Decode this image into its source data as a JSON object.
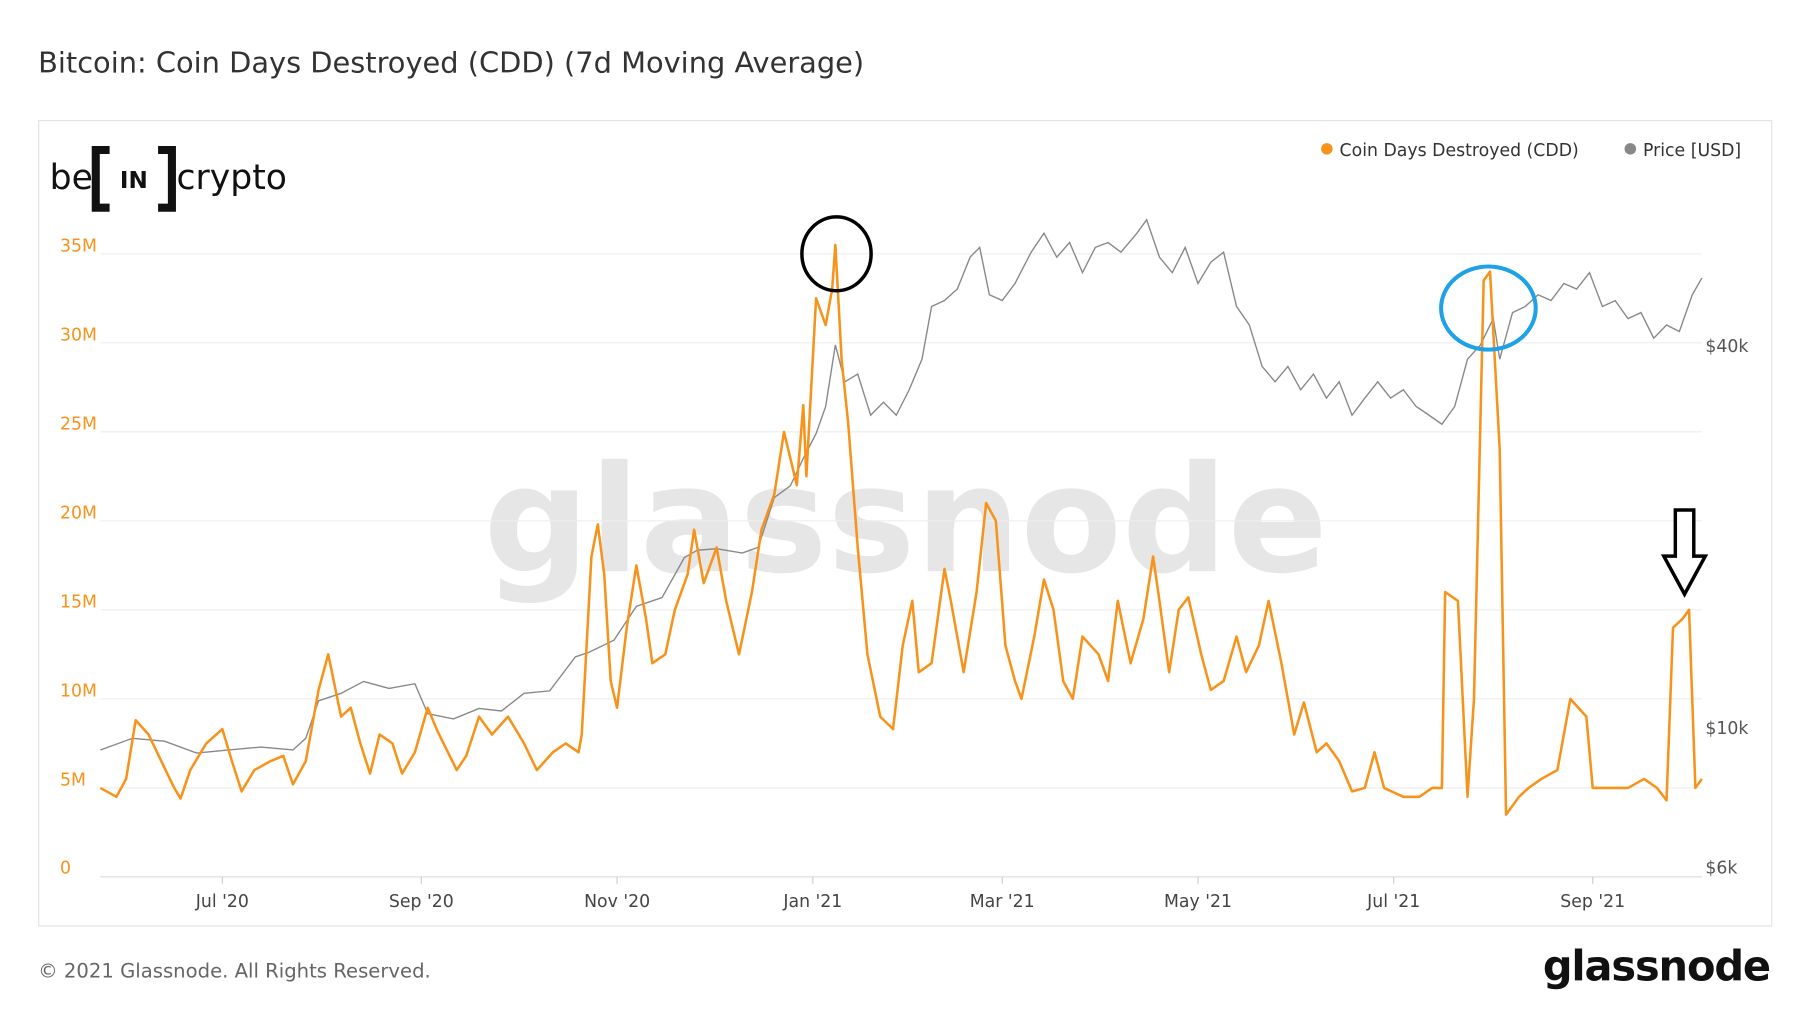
{
  "title": "Bitcoin: Coin Days Destroyed (CDD) (7d Moving Average)",
  "footer": "© 2021 Glassnode. All Rights Reserved.",
  "brand": "glassnode",
  "watermark": "glassnode",
  "logo": {
    "left": "be",
    "mid": "IN",
    "right": "crypto"
  },
  "colors": {
    "cdd": "#f7931a",
    "price": "#888888",
    "circle_black": "#000000",
    "circle_blue": "#1ea1e6"
  },
  "chart_data": {
    "type": "line",
    "title": "Bitcoin: Coin Days Destroyed (CDD) (7d Moving Average)",
    "x_start_date": "2020-05-24",
    "x_unit": "days since x_start_date",
    "x_range": [
      0,
      499
    ],
    "x_ticks": [
      {
        "label": "Jul '20",
        "day": 38
      },
      {
        "label": "Sep '20",
        "day": 100
      },
      {
        "label": "Nov '20",
        "day": 161
      },
      {
        "label": "Jan '21",
        "day": 222
      },
      {
        "label": "Mar '21",
        "day": 281
      },
      {
        "label": "May '21",
        "day": 342
      },
      {
        "label": "Jul '21",
        "day": 403
      },
      {
        "label": "Sep '21",
        "day": 465
      }
    ],
    "y_left": {
      "range": [
        0,
        35000000
      ],
      "ticks": [
        {
          "label": "0",
          "value": 0
        },
        {
          "label": "5M",
          "value": 5
        },
        {
          "label": "10M",
          "value": 10
        },
        {
          "label": "15M",
          "value": 15
        },
        {
          "label": "20M",
          "value": 20
        },
        {
          "label": "25M",
          "value": 25
        },
        {
          "label": "30M",
          "value": 30
        },
        {
          "label": "35M",
          "value": 35
        }
      ]
    },
    "y_right": {
      "scale": "log",
      "ticks": [
        {
          "label": "$6k",
          "value": 6000
        },
        {
          "label": "$10k",
          "value": 10000
        },
        {
          "label": "$40k",
          "value": 40000
        }
      ]
    },
    "legend": {
      "placement": "top-right",
      "items": [
        "Coin Days Destroyed (CDD)",
        "Price [USD]"
      ]
    },
    "grid": true,
    "series": [
      {
        "name": "Coin Days Destroyed (CDD)",
        "unit": "millions",
        "points": [
          [
            0,
            5.0
          ],
          [
            5,
            4.5
          ],
          [
            8,
            5.5
          ],
          [
            11,
            8.8
          ],
          [
            15,
            8.0
          ],
          [
            19,
            6.5
          ],
          [
            23,
            5.0
          ],
          [
            25,
            4.4
          ],
          [
            28,
            6.0
          ],
          [
            33,
            7.5
          ],
          [
            38,
            8.3
          ],
          [
            41,
            6.5
          ],
          [
            44,
            4.8
          ],
          [
            48,
            6.0
          ],
          [
            53,
            6.5
          ],
          [
            57,
            6.8
          ],
          [
            60,
            5.2
          ],
          [
            64,
            6.5
          ],
          [
            68,
            10.5
          ],
          [
            71,
            12.5
          ],
          [
            75,
            9.0
          ],
          [
            78,
            9.5
          ],
          [
            81,
            7.5
          ],
          [
            84,
            5.8
          ],
          [
            87,
            8.0
          ],
          [
            91,
            7.5
          ],
          [
            94,
            5.8
          ],
          [
            98,
            7.0
          ],
          [
            102,
            9.5
          ],
          [
            105,
            8.2
          ],
          [
            111,
            6.0
          ],
          [
            114,
            6.8
          ],
          [
            118,
            9.0
          ],
          [
            122,
            8.0
          ],
          [
            127,
            9.0
          ],
          [
            132,
            7.5
          ],
          [
            136,
            6.0
          ],
          [
            141,
            7.0
          ],
          [
            145,
            7.5
          ],
          [
            149,
            7.0
          ],
          [
            150,
            8.0
          ],
          [
            153,
            18.0
          ],
          [
            155,
            19.8
          ],
          [
            157,
            17.0
          ],
          [
            159,
            11.0
          ],
          [
            161,
            9.5
          ],
          [
            164,
            14.0
          ],
          [
            167,
            17.5
          ],
          [
            170,
            14.5
          ],
          [
            172,
            12.0
          ],
          [
            176,
            12.5
          ],
          [
            179,
            15.0
          ],
          [
            183,
            17.0
          ],
          [
            185,
            19.5
          ],
          [
            188,
            16.5
          ],
          [
            192,
            18.5
          ],
          [
            195,
            15.5
          ],
          [
            199,
            12.5
          ],
          [
            203,
            16.0
          ],
          [
            206,
            19.5
          ],
          [
            210,
            21.5
          ],
          [
            213,
            25.0
          ],
          [
            217,
            22.0
          ],
          [
            219,
            26.5
          ],
          [
            220,
            22.5
          ],
          [
            223,
            32.5
          ],
          [
            226,
            31.0
          ],
          [
            228,
            33.0
          ],
          [
            229,
            35.5
          ],
          [
            231,
            29.0
          ],
          [
            233,
            25.5
          ],
          [
            236,
            18.5
          ],
          [
            239,
            12.5
          ],
          [
            243,
            9.0
          ],
          [
            247,
            8.3
          ],
          [
            250,
            13.0
          ],
          [
            253,
            15.5
          ],
          [
            255,
            11.5
          ],
          [
            259,
            12.0
          ],
          [
            263,
            17.3
          ],
          [
            265,
            15.5
          ],
          [
            269,
            11.5
          ],
          [
            273,
            16.0
          ],
          [
            276,
            21.0
          ],
          [
            279,
            20.0
          ],
          [
            282,
            13.0
          ],
          [
            285,
            11.0
          ],
          [
            287,
            10.0
          ],
          [
            291,
            13.5
          ],
          [
            294,
            16.7
          ],
          [
            297,
            15.0
          ],
          [
            300,
            11.0
          ],
          [
            303,
            10.0
          ],
          [
            306,
            13.5
          ],
          [
            311,
            12.5
          ],
          [
            314,
            11.0
          ],
          [
            317,
            15.5
          ],
          [
            321,
            12.0
          ],
          [
            325,
            14.5
          ],
          [
            328,
            18.0
          ],
          [
            330,
            15.5
          ],
          [
            333,
            11.5
          ],
          [
            336,
            15.0
          ],
          [
            339,
            15.7
          ],
          [
            343,
            12.5
          ],
          [
            346,
            10.5
          ],
          [
            350,
            11.0
          ],
          [
            354,
            13.5
          ],
          [
            357,
            11.5
          ],
          [
            361,
            13.0
          ],
          [
            364,
            15.5
          ],
          [
            368,
            12.0
          ],
          [
            372,
            8.0
          ],
          [
            375,
            9.8
          ],
          [
            379,
            7.0
          ],
          [
            382,
            7.5
          ],
          [
            386,
            6.5
          ],
          [
            390,
            4.8
          ],
          [
            394,
            5.0
          ],
          [
            397,
            7.0
          ],
          [
            400,
            5.0
          ],
          [
            406,
            4.5
          ],
          [
            411,
            4.5
          ],
          [
            415,
            5.0
          ],
          [
            418,
            5.0
          ],
          [
            419,
            16.0
          ],
          [
            423,
            15.5
          ],
          [
            426,
            4.5
          ],
          [
            428,
            10.0
          ],
          [
            431,
            33.5
          ],
          [
            433,
            34.0
          ],
          [
            436,
            24.0
          ],
          [
            438,
            3.5
          ],
          [
            442,
            4.5
          ],
          [
            445,
            5.0
          ],
          [
            449,
            5.5
          ],
          [
            454,
            6.0
          ],
          [
            458,
            10.0
          ],
          [
            463,
            9.0
          ],
          [
            465,
            5.0
          ],
          [
            470,
            5.0
          ],
          [
            476,
            5.0
          ],
          [
            481,
            5.5
          ],
          [
            485,
            5.0
          ],
          [
            488,
            4.3
          ],
          [
            490,
            14.0
          ],
          [
            493,
            14.5
          ],
          [
            495,
            15.0
          ],
          [
            497,
            5.0
          ],
          [
            499,
            5.5
          ]
        ]
      },
      {
        "name": "Price [USD]",
        "unit": "USD",
        "points": [
          [
            0,
            9200
          ],
          [
            10,
            9600
          ],
          [
            20,
            9500
          ],
          [
            30,
            9100
          ],
          [
            40,
            9200
          ],
          [
            50,
            9300
          ],
          [
            60,
            9200
          ],
          [
            64,
            9600
          ],
          [
            68,
            11000
          ],
          [
            75,
            11300
          ],
          [
            82,
            11800
          ],
          [
            90,
            11500
          ],
          [
            98,
            11700
          ],
          [
            102,
            10500
          ],
          [
            110,
            10300
          ],
          [
            118,
            10700
          ],
          [
            125,
            10600
          ],
          [
            132,
            11300
          ],
          [
            140,
            11400
          ],
          [
            148,
            12900
          ],
          [
            152,
            13100
          ],
          [
            160,
            13700
          ],
          [
            167,
            15500
          ],
          [
            175,
            16000
          ],
          [
            182,
            18500
          ],
          [
            186,
            19000
          ],
          [
            192,
            19100
          ],
          [
            200,
            18800
          ],
          [
            205,
            19200
          ],
          [
            210,
            23000
          ],
          [
            215,
            24000
          ],
          [
            219,
            26500
          ],
          [
            223,
            29000
          ],
          [
            226,
            32000
          ],
          [
            229,
            40000
          ],
          [
            232,
            35000
          ],
          [
            236,
            36000
          ],
          [
            240,
            31000
          ],
          [
            244,
            32500
          ],
          [
            248,
            31000
          ],
          [
            252,
            34000
          ],
          [
            256,
            38000
          ],
          [
            259,
            46000
          ],
          [
            263,
            47000
          ],
          [
            267,
            49000
          ],
          [
            271,
            55000
          ],
          [
            274,
            57000
          ],
          [
            277,
            48000
          ],
          [
            281,
            47000
          ],
          [
            285,
            50000
          ],
          [
            290,
            56000
          ],
          [
            294,
            60000
          ],
          [
            298,
            55000
          ],
          [
            302,
            58000
          ],
          [
            306,
            52000
          ],
          [
            310,
            57000
          ],
          [
            314,
            58000
          ],
          [
            318,
            56000
          ],
          [
            323,
            60000
          ],
          [
            326,
            63000
          ],
          [
            330,
            55000
          ],
          [
            334,
            52000
          ],
          [
            338,
            57000
          ],
          [
            342,
            50000
          ],
          [
            346,
            54000
          ],
          [
            350,
            56000
          ],
          [
            354,
            46000
          ],
          [
            358,
            43000
          ],
          [
            362,
            37000
          ],
          [
            366,
            35000
          ],
          [
            370,
            37000
          ],
          [
            374,
            34000
          ],
          [
            378,
            36000
          ],
          [
            382,
            33000
          ],
          [
            386,
            35000
          ],
          [
            390,
            31000
          ],
          [
            394,
            33000
          ],
          [
            398,
            35000
          ],
          [
            402,
            33000
          ],
          [
            406,
            34000
          ],
          [
            410,
            32000
          ],
          [
            414,
            31000
          ],
          [
            418,
            30000
          ],
          [
            422,
            32000
          ],
          [
            426,
            38000
          ],
          [
            430,
            40000
          ],
          [
            434,
            44000
          ],
          [
            436,
            38000
          ],
          [
            440,
            45000
          ],
          [
            444,
            46000
          ],
          [
            448,
            48000
          ],
          [
            452,
            47000
          ],
          [
            456,
            50000
          ],
          [
            460,
            49000
          ],
          [
            464,
            52000
          ],
          [
            468,
            46000
          ],
          [
            472,
            47000
          ],
          [
            476,
            44000
          ],
          [
            480,
            45000
          ],
          [
            484,
            41000
          ],
          [
            488,
            43000
          ],
          [
            492,
            42000
          ],
          [
            496,
            48000
          ],
          [
            499,
            51000
          ]
        ]
      }
    ]
  }
}
